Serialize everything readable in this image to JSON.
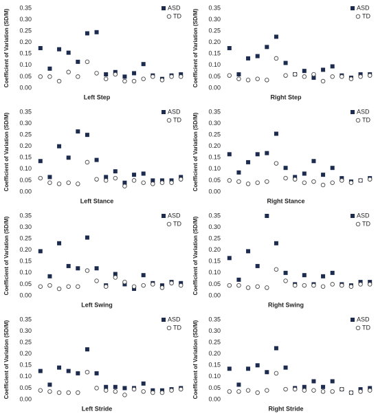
{
  "chart_data": [
    {
      "type": "scatter",
      "x_label": "Left Step",
      "y_label": "Coefficient of Variation (SD/M)",
      "legend": "top-right",
      "ylim": [
        0,
        0.35
      ],
      "yticks": [
        {
          "value": 0,
          "label": "0.00"
        },
        {
          "value": 0.05,
          "label": "0.05"
        },
        {
          "value": 0.1,
          "label": "0.10"
        },
        {
          "value": 0.15,
          "label": "0.15"
        },
        {
          "value": 0.2,
          "label": "0.20"
        },
        {
          "value": 0.25,
          "label": "0.25"
        },
        {
          "value": 0.3,
          "label": "0.30"
        },
        {
          "value": 0.35,
          "label": "0.35"
        }
      ],
      "categories": [
        null,
        null,
        null,
        null,
        null,
        null,
        null,
        null,
        null,
        null,
        null,
        null,
        null,
        null,
        null,
        null
      ],
      "series": [
        {
          "name": "ASD",
          "color": "#1c2b4e",
          "values": [
            0.175,
            0.085,
            0.17,
            0.155,
            0.115,
            0.24,
            0.245,
            0.06,
            0.07,
            0.05,
            0.065,
            0.105,
            0.055,
            0.04,
            0.055,
            0.06
          ]
        },
        {
          "name": "TD",
          "color": "#444444",
          "values": [
            0.05,
            0.05,
            0.03,
            0.07,
            0.05,
            0.115,
            0.065,
            0.04,
            0.06,
            0.03,
            0.03,
            0.04,
            0.05,
            0.035,
            0.05,
            0.05
          ]
        }
      ]
    },
    {
      "type": "scatter",
      "x_label": "Right Step",
      "y_label": "Coefficient of Variation (SD/M)",
      "legend": "top-right",
      "ylim": [
        0,
        0.35
      ],
      "yticks": [
        {
          "value": 0,
          "label": "0.00"
        },
        {
          "value": 0.05,
          "label": "0.05"
        },
        {
          "value": 0.1,
          "label": "0.10"
        },
        {
          "value": 0.15,
          "label": "0.15"
        },
        {
          "value": 0.2,
          "label": "0.20"
        },
        {
          "value": 0.25,
          "label": "0.25"
        },
        {
          "value": 0.3,
          "label": "0.30"
        },
        {
          "value": 0.35,
          "label": "0.35"
        }
      ],
      "categories": [
        null,
        null,
        null,
        null,
        null,
        null,
        null,
        null,
        null,
        null,
        null,
        null,
        null,
        null,
        null,
        null
      ],
      "series": [
        {
          "name": "ASD",
          "color": "#1c2b4e",
          "values": [
            0.175,
            0.06,
            0.13,
            0.14,
            0.18,
            0.225,
            0.11,
            0.06,
            0.075,
            0.045,
            0.08,
            0.095,
            0.055,
            0.045,
            0.06,
            0.06
          ]
        },
        {
          "name": "TD",
          "color": "#444444",
          "values": [
            0.055,
            0.04,
            0.035,
            0.04,
            0.035,
            0.13,
            0.055,
            0.06,
            0.05,
            0.06,
            0.03,
            0.05,
            0.05,
            0.04,
            0.05,
            0.055
          ]
        }
      ]
    },
    {
      "type": "scatter",
      "x_label": "Left Stance",
      "y_label": "Coefficient of Variation (SD/M)",
      "legend": "top-right",
      "ylim": [
        0,
        0.35
      ],
      "yticks": [
        {
          "value": 0,
          "label": "0.00"
        },
        {
          "value": 0.05,
          "label": "0.05"
        },
        {
          "value": 0.1,
          "label": "0.10"
        },
        {
          "value": 0.15,
          "label": "0.15"
        },
        {
          "value": 0.2,
          "label": "0.20"
        },
        {
          "value": 0.25,
          "label": "0.25"
        },
        {
          "value": 0.3,
          "label": "0.30"
        },
        {
          "value": 0.35,
          "label": "0.35"
        }
      ],
      "categories": [
        null,
        null,
        null,
        null,
        null,
        null,
        null,
        null,
        null,
        null,
        null,
        null,
        null,
        null,
        null,
        null
      ],
      "series": [
        {
          "name": "ASD",
          "color": "#1c2b4e",
          "values": [
            0.135,
            0.065,
            0.2,
            0.15,
            0.265,
            0.25,
            0.14,
            0.065,
            0.09,
            0.04,
            0.075,
            0.08,
            0.05,
            0.05,
            0.05,
            0.065
          ]
        },
        {
          "name": "TD",
          "color": "#444444",
          "values": [
            0.06,
            0.04,
            0.035,
            0.04,
            0.035,
            0.13,
            0.055,
            0.05,
            0.06,
            0.025,
            0.05,
            0.04,
            0.035,
            0.04,
            0.04,
            0.055
          ]
        }
      ]
    },
    {
      "type": "scatter",
      "x_label": "Right Stance",
      "y_label": "Coefficient of Variation (SD/M)",
      "legend": "top-right",
      "ylim": [
        0,
        0.35
      ],
      "yticks": [
        {
          "value": 0,
          "label": "0.00"
        },
        {
          "value": 0.05,
          "label": "0.05"
        },
        {
          "value": 0.1,
          "label": "0.10"
        },
        {
          "value": 0.15,
          "label": "0.15"
        },
        {
          "value": 0.2,
          "label": "0.20"
        },
        {
          "value": 0.25,
          "label": "0.25"
        },
        {
          "value": 0.3,
          "label": "0.30"
        },
        {
          "value": 0.35,
          "label": "0.35"
        }
      ],
      "categories": [
        null,
        null,
        null,
        null,
        null,
        null,
        null,
        null,
        null,
        null,
        null,
        null,
        null,
        null,
        null,
        null
      ],
      "series": [
        {
          "name": "ASD",
          "color": "#1c2b4e",
          "values": [
            0.165,
            0.085,
            0.13,
            0.165,
            0.17,
            0.255,
            0.105,
            0.065,
            0.08,
            0.135,
            0.075,
            0.105,
            0.06,
            0.045,
            0.05,
            0.06
          ]
        },
        {
          "name": "TD",
          "color": "#444444",
          "values": [
            0.05,
            0.045,
            0.035,
            0.04,
            0.045,
            0.125,
            0.06,
            0.055,
            0.04,
            0.045,
            0.03,
            0.04,
            0.05,
            0.04,
            0.05,
            0.055
          ]
        }
      ]
    },
    {
      "type": "scatter",
      "x_label": "Left Swing",
      "y_label": "Coefficient of Variation (SD/M)",
      "legend": "top-right",
      "ylim": [
        0,
        0.35
      ],
      "yticks": [
        {
          "value": 0,
          "label": "0.00"
        },
        {
          "value": 0.05,
          "label": "0.05"
        },
        {
          "value": 0.1,
          "label": "0.10"
        },
        {
          "value": 0.15,
          "label": "0.15"
        },
        {
          "value": 0.2,
          "label": "0.20"
        },
        {
          "value": 0.25,
          "label": "0.25"
        },
        {
          "value": 0.3,
          "label": "0.30"
        },
        {
          "value": 0.35,
          "label": "0.35"
        }
      ],
      "categories": [
        null,
        null,
        null,
        null,
        null,
        null,
        null,
        null,
        null,
        null,
        null,
        null,
        null,
        null,
        null,
        null
      ],
      "series": [
        {
          "name": "ASD",
          "color": "#1c2b4e",
          "values": [
            0.195,
            0.085,
            0.23,
            0.13,
            0.12,
            0.255,
            0.12,
            0.045,
            0.095,
            0.05,
            0.03,
            0.09,
            0.055,
            0.045,
            0.06,
            0.055
          ]
        },
        {
          "name": "TD",
          "color": "#444444",
          "values": [
            0.04,
            0.045,
            0.03,
            0.04,
            0.04,
            0.11,
            0.065,
            0.04,
            0.08,
            0.06,
            0.04,
            0.045,
            0.05,
            0.035,
            0.055,
            0.045
          ]
        }
      ]
    },
    {
      "type": "scatter",
      "x_label": "Right Swing",
      "y_label": "Coefficient of Variation (SD/M)",
      "legend": "top-right",
      "ylim": [
        0,
        0.35
      ],
      "yticks": [
        {
          "value": 0,
          "label": "0.00"
        },
        {
          "value": 0.05,
          "label": "0.05"
        },
        {
          "value": 0.1,
          "label": "0.10"
        },
        {
          "value": 0.15,
          "label": "0.15"
        },
        {
          "value": 0.2,
          "label": "0.20"
        },
        {
          "value": 0.25,
          "label": "0.25"
        },
        {
          "value": 0.3,
          "label": "0.30"
        },
        {
          "value": 0.35,
          "label": "0.35"
        }
      ],
      "categories": [
        null,
        null,
        null,
        null,
        null,
        null,
        null,
        null,
        null,
        null,
        null,
        null,
        null,
        null,
        null,
        null
      ],
      "series": [
        {
          "name": "ASD",
          "color": "#1c2b4e",
          "values": [
            0.165,
            0.07,
            0.195,
            0.13,
            0.35,
            0.23,
            0.1,
            0.05,
            0.09,
            0.05,
            0.085,
            0.1,
            0.05,
            0.045,
            0.06,
            0.06
          ]
        },
        {
          "name": "TD",
          "color": "#444444",
          "values": [
            0.045,
            0.045,
            0.035,
            0.04,
            0.035,
            0.115,
            0.065,
            0.045,
            0.045,
            0.045,
            0.04,
            0.05,
            0.045,
            0.04,
            0.05,
            0.05
          ]
        }
      ]
    },
    {
      "type": "scatter",
      "x_label": "Left Stride",
      "y_label": "Coefficient of Variation (SD/M)",
      "legend": "top-right",
      "ylim": [
        0,
        0.35
      ],
      "yticks": [
        {
          "value": 0,
          "label": "0.00"
        },
        {
          "value": 0.05,
          "label": "0.05"
        },
        {
          "value": 0.1,
          "label": "0.10"
        },
        {
          "value": 0.15,
          "label": "0.15"
        },
        {
          "value": 0.2,
          "label": "0.20"
        },
        {
          "value": 0.25,
          "label": "0.25"
        },
        {
          "value": 0.3,
          "label": "0.30"
        },
        {
          "value": 0.35,
          "label": "0.35"
        }
      ],
      "categories": [
        null,
        null,
        null,
        null,
        null,
        null,
        null,
        null,
        null,
        null,
        null,
        null,
        null,
        null,
        null,
        null
      ],
      "series": [
        {
          "name": "ASD",
          "color": "#1c2b4e",
          "values": [
            0.125,
            0.065,
            0.14,
            0.125,
            0.115,
            0.22,
            0.115,
            0.055,
            0.055,
            0.05,
            0.05,
            0.07,
            0.04,
            0.04,
            0.045,
            0.05
          ]
        },
        {
          "name": "TD",
          "color": "#444444",
          "values": [
            0.04,
            0.035,
            0.03,
            0.03,
            0.03,
            0.12,
            0.05,
            0.04,
            0.035,
            0.02,
            0.045,
            0.035,
            0.03,
            0.03,
            0.04,
            0.045
          ]
        }
      ]
    },
    {
      "type": "scatter",
      "x_label": "Right Stride",
      "y_label": "Coefficient of Variation (SD/M)",
      "legend": "top-right",
      "ylim": [
        0,
        0.35
      ],
      "yticks": [
        {
          "value": 0,
          "label": "0.00"
        },
        {
          "value": 0.05,
          "label": "0.05"
        },
        {
          "value": 0.1,
          "label": "0.10"
        },
        {
          "value": 0.15,
          "label": "0.15"
        },
        {
          "value": 0.2,
          "label": "0.20"
        },
        {
          "value": 0.25,
          "label": "0.25"
        },
        {
          "value": 0.3,
          "label": "0.30"
        },
        {
          "value": 0.35,
          "label": "0.35"
        }
      ],
      "categories": [
        null,
        null,
        null,
        null,
        null,
        null,
        null,
        null,
        null,
        null,
        null,
        null,
        null,
        null,
        null,
        null
      ],
      "series": [
        {
          "name": "ASD",
          "color": "#1c2b4e",
          "values": [
            0.135,
            0.065,
            0.135,
            0.15,
            0.12,
            0.225,
            0.14,
            0.05,
            0.055,
            0.08,
            0.055,
            0.08,
            0.045,
            0.03,
            0.045,
            0.05
          ]
        },
        {
          "name": "TD",
          "color": "#444444",
          "values": [
            0.035,
            0.035,
            0.04,
            0.03,
            0.04,
            0.115,
            0.045,
            0.045,
            0.04,
            0.04,
            0.035,
            0.035,
            0.045,
            0.03,
            0.035,
            0.04
          ]
        }
      ]
    }
  ]
}
